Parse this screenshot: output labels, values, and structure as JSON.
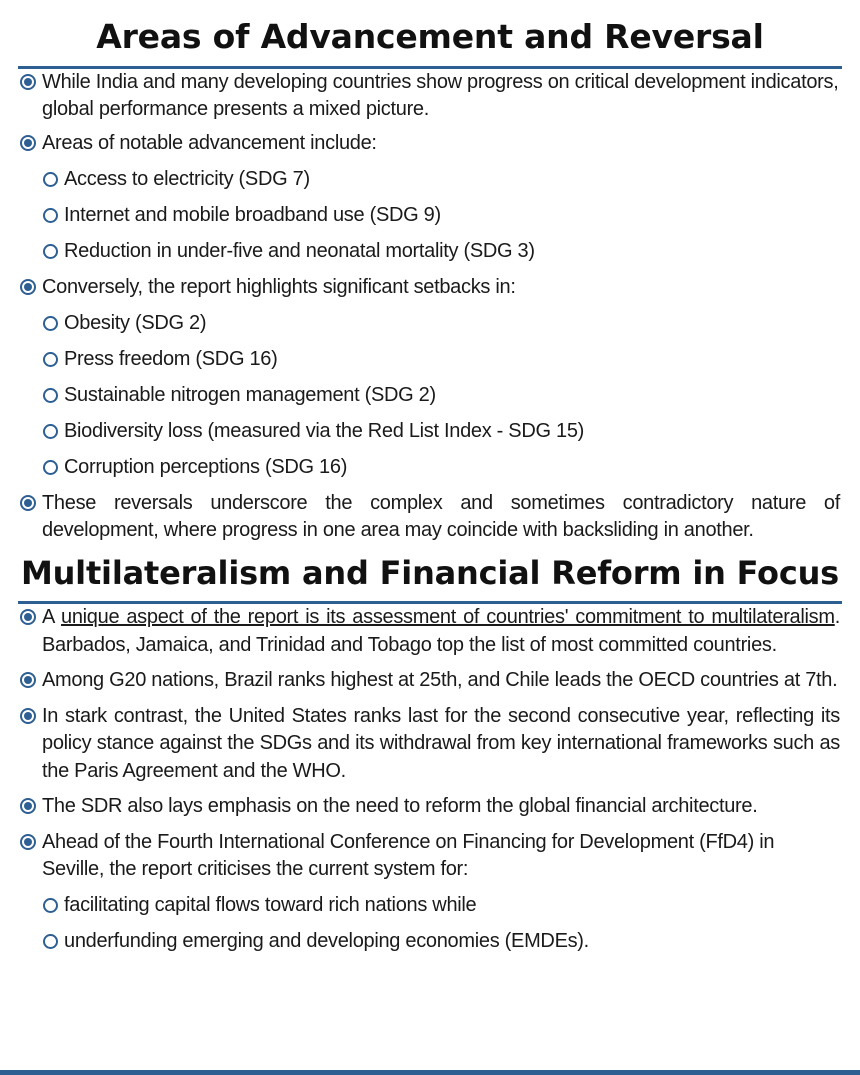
{
  "section1": {
    "title": "Areas of Advancement and Reversal",
    "bullet1": "While India and many developing countries show progress on critical development indicators, global performance presents a mixed picture.",
    "bullet2": "Areas of notable advancement include:",
    "advancements": [
      "Access to electricity (SDG 7)",
      "Internet and mobile broadband use (SDG 9)",
      "Reduction in under-five and neonatal mortality (SDG 3)"
    ],
    "bullet3": "Conversely, the report highlights significant setbacks in:",
    "setbacks": [
      "Obesity (SDG 2)",
      "Press freedom (SDG 16)",
      "Sustainable nitrogen management (SDG 2)",
      "Biodiversity loss (measured via the Red List Index - SDG 15)",
      "Corruption perceptions (SDG 16)"
    ],
    "bullet4": "These reversals underscore the complex and sometimes contradictory nature of development, where progress in one area may coincide with backsliding in another."
  },
  "section2": {
    "title": "Multilateralism and Financial Reform in Focus",
    "bullet1_prefix": "A ",
    "bullet1_underlined": "unique aspect of the report is its assessment of countries' commitment to multilateralism",
    "bullet1_suffix": ". Barbados, Jamaica, and Trinidad and Tobago top the list of most committed countries.",
    "bullet2": "Among G20 nations, Brazil ranks highest at 25th, and Chile leads the OECD countries at 7th.",
    "bullet3": "In stark contrast, the United States ranks last for the second consecutive year, reflecting its policy stance against the SDGs and its withdrawal from key international frameworks such as the Paris Agreement and the WHO.",
    "bullet4": "The SDR also lays emphasis on the need to reform the global financial architecture.",
    "bullet5": "Ahead of the Fourth International Conference on Financing for Development (FfD4) in Seville, the report criticises the current system for:",
    "criticisms": [
      "facilitating capital flows toward rich nations while",
      "underfunding emerging and developing economies (EMDEs)."
    ]
  },
  "colors": {
    "accent": "#2e5f93",
    "text": "#1a1a1a"
  }
}
